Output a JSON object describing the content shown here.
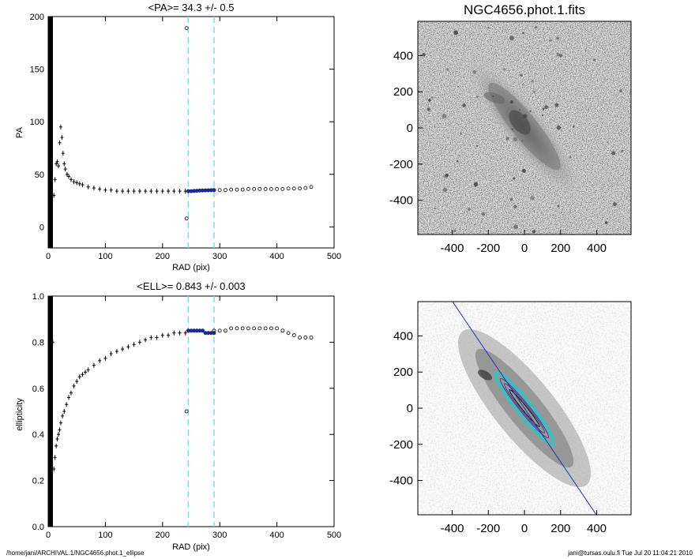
{
  "chart_data": [
    {
      "type": "scatter",
      "title": "<PA>=  34.3 +/-   0.5",
      "xlabel": "RAD (pix)",
      "ylabel": "PA",
      "xlim": [
        0,
        500
      ],
      "ylim": [
        -20,
        200
      ],
      "xticks": [
        "0",
        "100",
        "200",
        "300",
        "400",
        "500"
      ],
      "yticks": [
        "0",
        "50",
        "100",
        "150",
        "200"
      ],
      "vlines": [
        245,
        290
      ],
      "series": [
        {
          "style": "black",
          "x": [
            10,
            12,
            14,
            16,
            18,
            20,
            22,
            24,
            26,
            28,
            30,
            33,
            36,
            40,
            45,
            50,
            55,
            60,
            70,
            80,
            90,
            100,
            110,
            120,
            130,
            140,
            150,
            160,
            170,
            180,
            190,
            200,
            210,
            220,
            230,
            240
          ],
          "y": [
            30,
            45,
            60,
            62,
            58,
            80,
            95,
            85,
            70,
            60,
            55,
            50,
            48,
            45,
            43,
            42,
            41,
            40,
            38,
            37,
            36,
            35,
            35,
            34,
            34,
            34,
            34,
            34,
            34,
            34,
            34,
            34,
            34,
            34,
            34,
            34
          ]
        },
        {
          "style": "blue",
          "x": [
            245,
            250,
            255,
            260,
            265,
            270,
            275,
            280,
            285,
            290
          ],
          "y": [
            34,
            34,
            34.2,
            34.3,
            34.5,
            34.6,
            34.7,
            34.8,
            34.9,
            35
          ]
        },
        {
          "style": "open",
          "x": [
            290,
            300,
            310,
            320,
            330,
            340,
            350,
            360,
            370,
            380,
            390,
            400,
            410,
            420,
            430,
            440,
            450,
            460,
            242,
            242
          ],
          "y": [
            35,
            35,
            35,
            35.5,
            35.5,
            35.5,
            36,
            36,
            36,
            36,
            36,
            36,
            36,
            36.5,
            36.5,
            36.5,
            37,
            38,
            189,
            8
          ]
        }
      ]
    },
    {
      "type": "scatter",
      "title": "<ELL>= 0.843 +/-  0.003",
      "xlabel": "RAD (pix)",
      "ylabel": "ellipticity",
      "xlim": [
        0,
        500
      ],
      "ylim": [
        0,
        1.0
      ],
      "xticks": [
        "0",
        "100",
        "200",
        "300",
        "400",
        "500"
      ],
      "yticks": [
        "0.0",
        "0.2",
        "0.4",
        "0.6",
        "0.8",
        "1.0"
      ],
      "vlines": [
        245,
        290
      ],
      "series": [
        {
          "style": "black",
          "x": [
            8,
            10,
            12,
            14,
            16,
            18,
            20,
            22,
            25,
            28,
            32,
            36,
            40,
            45,
            50,
            55,
            60,
            65,
            70,
            80,
            90,
            100,
            110,
            120,
            130,
            140,
            150,
            160,
            170,
            180,
            190,
            200,
            210,
            220,
            230,
            240
          ],
          "y": [
            0.8,
            0.25,
            0.3,
            0.35,
            0.38,
            0.4,
            0.42,
            0.45,
            0.48,
            0.5,
            0.53,
            0.56,
            0.58,
            0.61,
            0.63,
            0.65,
            0.66,
            0.67,
            0.68,
            0.7,
            0.72,
            0.73,
            0.75,
            0.76,
            0.77,
            0.78,
            0.79,
            0.8,
            0.81,
            0.82,
            0.82,
            0.83,
            0.83,
            0.84,
            0.84,
            0.84
          ]
        },
        {
          "style": "blue",
          "x": [
            245,
            250,
            255,
            260,
            265,
            270,
            275,
            280,
            285,
            290
          ],
          "y": [
            0.85,
            0.85,
            0.85,
            0.85,
            0.85,
            0.85,
            0.84,
            0.84,
            0.84,
            0.84
          ]
        },
        {
          "style": "open",
          "x": [
            290,
            300,
            310,
            320,
            330,
            340,
            350,
            360,
            370,
            380,
            390,
            400,
            410,
            420,
            430,
            440,
            450,
            460,
            242
          ],
          "y": [
            0.85,
            0.85,
            0.85,
            0.86,
            0.86,
            0.86,
            0.86,
            0.86,
            0.86,
            0.86,
            0.86,
            0.86,
            0.85,
            0.84,
            0.83,
            0.82,
            0.82,
            0.82,
            0.5
          ]
        }
      ]
    },
    {
      "type": "image",
      "title": "NGC4656.phot.1.fits",
      "xlim": [
        -590,
        590
      ],
      "ylim": [
        -590,
        590
      ],
      "xticks": [
        "-400",
        "-200",
        "0",
        "200",
        "400"
      ],
      "yticks": [
        "-400",
        "-200",
        "0",
        "200",
        "400"
      ]
    },
    {
      "type": "contour",
      "title": "",
      "xlim": [
        -590,
        590
      ],
      "ylim": [
        -590,
        590
      ],
      "xticks": [
        "-400",
        "-200",
        "0",
        "200",
        "400"
      ],
      "yticks": [
        "-400",
        "-200",
        "0",
        "200",
        "400"
      ]
    }
  ],
  "footer": {
    "left": "/home/jani/ARCHIVAL.1/NGC4656.phot.1_ellipse",
    "right": "jani@tursas.oulu.fi  Tue Jul 20 11:04:21 2010"
  }
}
